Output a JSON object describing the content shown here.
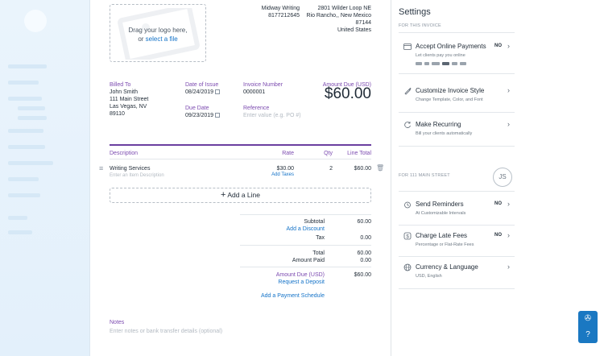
{
  "company": {
    "name": "Midway Writing",
    "phone": "8177212645",
    "address_line1": "2801 Wilder Loop NE",
    "address_line2": "Rio Rancho,, New Mexico",
    "zip": "87144",
    "country": "United States"
  },
  "logo_zone": {
    "line1": "Drag your logo here,",
    "line2_prefix": "or ",
    "line2_link": "select a file"
  },
  "billed_to": {
    "label": "Billed To",
    "name": "John Smith",
    "street": "111 Main Street",
    "city": "Las Vegas, NV",
    "zip": "89110"
  },
  "dates": {
    "issue_label": "Date of Issue",
    "issue_value": "08/24/2019",
    "due_label": "Due Date",
    "due_value": "09/23/2019"
  },
  "invoice": {
    "number_label": "Invoice Number",
    "number_value": "0000001",
    "reference_label": "Reference",
    "reference_placeholder": "Enter value (e.g. PO #)",
    "amount_due_label": "Amount Due (USD)",
    "amount_due_value": "$60.00"
  },
  "table": {
    "headers": {
      "description": "Description",
      "rate": "Rate",
      "qty": "Qty",
      "line_total": "Line Total"
    },
    "rows": [
      {
        "description": "Writing Services",
        "description_placeholder": "Enter an Item Description",
        "rate": "$30.00",
        "add_taxes": "Add Taxes",
        "qty": "2",
        "line_total": "$60.00"
      }
    ],
    "add_line": "Add a Line"
  },
  "totals": {
    "subtotal_label": "Subtotal",
    "subtotal_value": "60.00",
    "add_discount": "Add a Discount",
    "tax_label": "Tax",
    "tax_value": "0.00",
    "total_label": "Total",
    "total_value": "60.00",
    "amount_paid_label": "Amount Paid",
    "amount_paid_value": "0.00",
    "amount_due_label": "Amount Due (USD)",
    "amount_due_value": "$60.00",
    "request_deposit": "Request a Deposit",
    "payment_schedule": "Add a Payment Schedule"
  },
  "notes": {
    "label": "Notes",
    "placeholder": "Enter notes or bank transfer details (optional)"
  },
  "settings": {
    "title": "Settings",
    "for_invoice": "FOR THIS INVOICE",
    "online_payments": {
      "title": "Accept Online Payments",
      "desc": "Let clients pay you online",
      "status": "NO"
    },
    "style": {
      "title": "Customize Invoice Style",
      "desc": "Change Template, Color, and Font"
    },
    "recurring": {
      "title": "Make Recurring",
      "desc": "Bill your clients automatically"
    },
    "for_client": "FOR 111 MAIN STREET",
    "avatar_initials": "JS",
    "reminders": {
      "title": "Send Reminders",
      "desc": "At Customizable Intervals",
      "status": "NO"
    },
    "late_fees": {
      "title": "Charge Late Fees",
      "desc": "Percentage or Flat-Rate Fees",
      "status": "NO"
    },
    "currency": {
      "title": "Currency & Language",
      "desc": "USD, English"
    }
  },
  "colors": {
    "accent_purple": "#6b3fa0",
    "link_blue": "#1473c8",
    "help_blue": "#1a78c2"
  }
}
